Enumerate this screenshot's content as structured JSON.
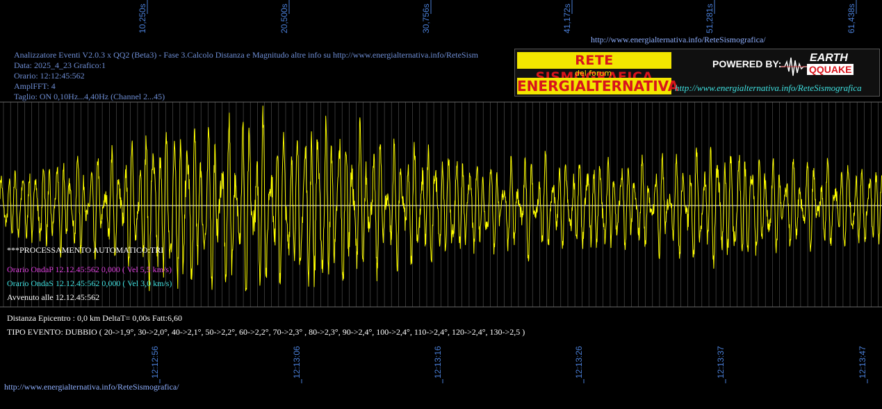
{
  "header": {
    "top_url": "http://www.energialternativa.info/ReteSismografica/",
    "info_lines": [
      "Analizzatore Eventi V2.0.3 x QQ2 (Beta3) - Fase 3.Calcolo Distanza e Magnitudo altre info su http://www.energialternativa.info/ReteSism",
      "Data: 2025_4_23 Grafico:1",
      "Orario: 12:12:45:562",
      "AmplFFT: 4",
      "Taglio: ON 0,10Hz...4,40Hz      (Channel 2...45)"
    ]
  },
  "logo": {
    "line1": "RETE SISMOGRAFICA",
    "line2": "del forum",
    "line3": "ENERGIALTERNATIVA",
    "powered_by": "POWERED BY:",
    "brand_top": "EARTH",
    "brand_bottom": "QQUAKE",
    "url": "http://www.energialternativa.info/ReteSismografica"
  },
  "processing": {
    "auto": "***PROCESSAMENTO AUTOMATICO:TRI",
    "p_wave": "Orario OndaP 12.12.45:562  0,000 ( Vel 5,5 km/s)",
    "s_wave": "Orario OndaS 12.12.45:562  0,000 ( Vel 3,0 km/s)",
    "occurred": "Avvenuto alle 12.12.45:562"
  },
  "results": {
    "distance": "Distanza Epicentro : 0,0 km DeltaT= 0,00s  Fatt:6,60",
    "event_type": "TIPO EVENTO: DUBBIO ( 20->1,9°, 30->2,0°, 40->2,1°, 50->2,2°, 60->2,2°, 70->2,3° , 80->2,3°, 90->2,4°, 100->2,4°, 110->2,4°, 120->2,4°, 130->2,5 )"
  },
  "footer_url": "http://www.energialternativa.info/ReteSismografica/",
  "colors": {
    "trace": "#ffff00",
    "grid": "#5a5a5a",
    "baseline": "#ffffff",
    "tick_label": "#4a7fd8"
  },
  "chart_data": {
    "type": "line",
    "title": "",
    "top_ticks": [
      "10,250s",
      "20,500s",
      "30,756s",
      "41,172s",
      "51,281s",
      "61,438s"
    ],
    "bottom_ticks": [
      "12:12:56",
      "12:13:06",
      "12:13:16",
      "12:13:26",
      "12:13:37",
      "12:13:47"
    ],
    "x_range_seconds": [
      0,
      62.5
    ],
    "grid": true,
    "series": [
      {
        "color": "#ffff00",
        "envelope_times_s": [
          0,
          2.5,
          5,
          7.5,
          10,
          12.5,
          15,
          17.5,
          20,
          22.5,
          25,
          27.5,
          30,
          32.5,
          35,
          37.5,
          40,
          42.5,
          45,
          47.5,
          50,
          52.5,
          55,
          57.5,
          60,
          62.5
        ],
        "envelope_amplitude": [
          0.35,
          0.45,
          0.5,
          0.5,
          0.75,
          0.95,
          0.8,
          0.9,
          0.85,
          0.95,
          0.8,
          0.6,
          0.65,
          0.55,
          0.45,
          0.5,
          0.45,
          0.5,
          0.45,
          0.5,
          0.6,
          0.6,
          0.45,
          0.45,
          0.45,
          0.45
        ]
      }
    ]
  }
}
